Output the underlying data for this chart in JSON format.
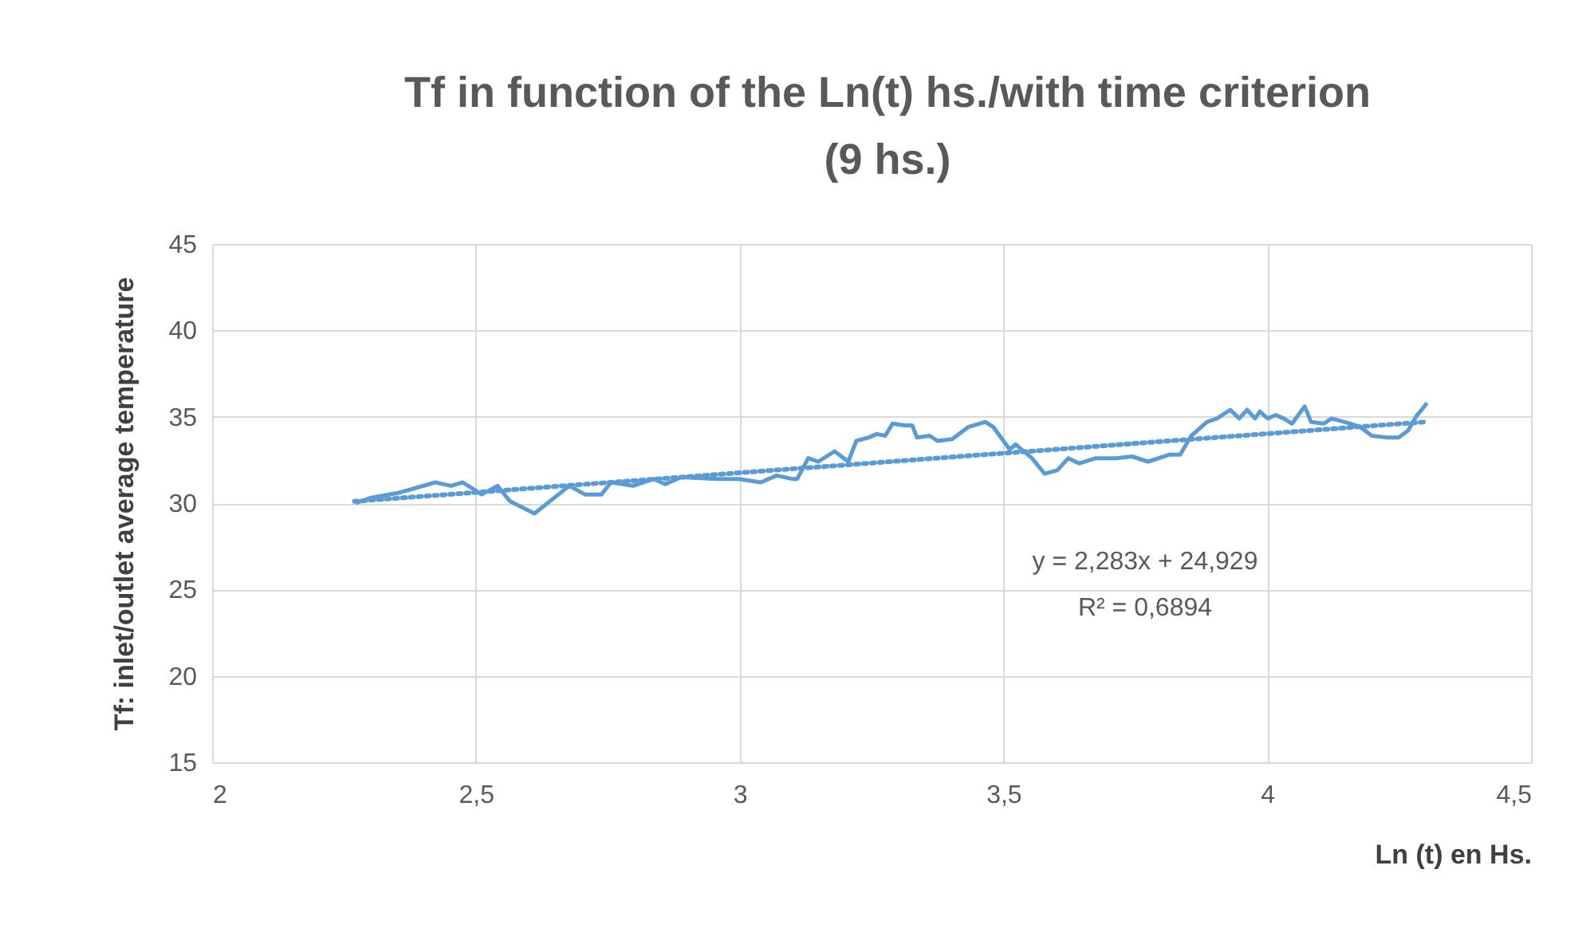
{
  "chart_data": {
    "type": "line",
    "title": "Tf in function of the Ln(t) hs./with time criterion\n(9 hs.)",
    "xlabel": "Ln (t) en Hs.",
    "ylabel": "Tf: inlet/outlet average temperature",
    "xlim": [
      2,
      4.5
    ],
    "xticks": [
      2,
      {
        "value": 2.5,
        "label": "2,5"
      },
      3,
      {
        "value": 3.5,
        "label": "3,5"
      },
      4,
      {
        "value": 4.5,
        "label": "4,5"
      }
    ],
    "ylim": [
      15,
      45
    ],
    "yticks": [
      15,
      20,
      25,
      30,
      35,
      40,
      45
    ],
    "grid": true,
    "annotations": [
      "y = 2,283x + 24,929",
      "R² = 0,6894"
    ],
    "series": [
      {
        "color": "#5b9bd5",
        "line_style": "solid",
        "x": [
          2.272,
          2.3,
          2.354,
          2.423,
          2.453,
          2.475,
          2.511,
          2.541,
          2.565,
          2.611,
          2.677,
          2.707,
          2.738,
          2.756,
          2.798,
          2.837,
          2.859,
          2.889,
          2.958,
          2.998,
          3.04,
          3.07,
          3.1,
          3.109,
          3.13,
          3.149,
          3.18,
          3.206,
          3.221,
          3.245,
          3.26,
          3.276,
          3.29,
          3.312,
          3.327,
          3.336,
          3.36,
          3.375,
          3.403,
          3.433,
          3.466,
          3.481,
          3.512,
          3.523,
          3.554,
          3.578,
          3.602,
          3.623,
          3.644,
          3.675,
          3.714,
          3.744,
          3.774,
          3.814,
          3.835,
          3.856,
          3.886,
          3.905,
          3.93,
          3.947,
          3.962,
          3.977,
          3.986,
          4.001,
          4.016,
          4.031,
          4.047,
          4.071,
          4.083,
          4.107,
          4.122,
          4.158,
          4.177,
          4.198,
          4.228,
          4.249,
          4.267,
          4.282,
          4.303
        ],
        "values": [
          30.0,
          30.3,
          30.6,
          31.2,
          31.0,
          31.2,
          30.5,
          31.0,
          30.1,
          29.4,
          31.0,
          30.5,
          30.5,
          31.2,
          31.0,
          31.4,
          31.1,
          31.5,
          31.4,
          31.4,
          31.2,
          31.6,
          31.4,
          31.4,
          32.6,
          32.4,
          33.0,
          32.4,
          33.6,
          33.8,
          34.0,
          33.9,
          34.6,
          34.5,
          34.5,
          33.8,
          33.9,
          33.6,
          33.7,
          34.4,
          34.7,
          34.4,
          33.1,
          33.4,
          32.6,
          31.7,
          31.9,
          32.6,
          32.3,
          32.6,
          32.6,
          32.7,
          32.4,
          32.8,
          32.8,
          33.9,
          34.7,
          34.9,
          35.4,
          34.9,
          35.4,
          34.9,
          35.3,
          34.9,
          35.1,
          34.9,
          34.6,
          35.6,
          34.7,
          34.6,
          34.9,
          34.6,
          34.4,
          33.9,
          33.8,
          33.8,
          34.2,
          35.0,
          35.8
        ]
      },
      {
        "type": "line",
        "color": "#5b9bd5",
        "line_style": "dotted",
        "x": [
          2.27,
          4.3
        ],
        "values": [
          30.1,
          34.7
        ]
      }
    ]
  }
}
